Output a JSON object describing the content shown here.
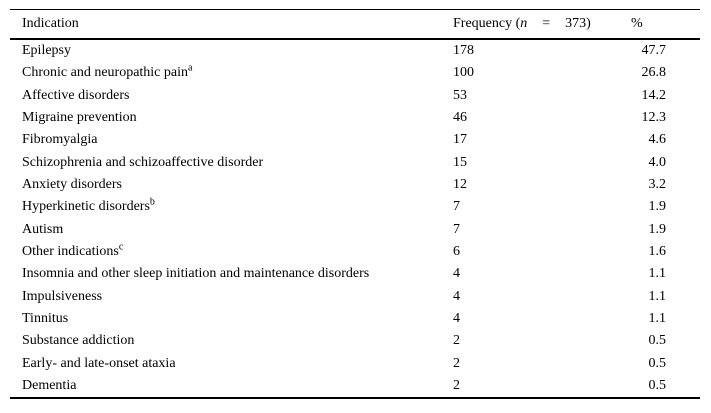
{
  "table": {
    "header": {
      "indication": "Indication",
      "frequency_prefix": "Frequency (",
      "frequency_n": "n",
      "frequency_eq": "=",
      "frequency_suffix": "373)",
      "percent": "%"
    },
    "rows": [
      {
        "indication": "Epilepsy",
        "frequency": "178",
        "percent": "47.7"
      },
      {
        "indication": "Chronic and neuropathic pain",
        "sup": "a",
        "frequency": "100",
        "percent": "26.8"
      },
      {
        "indication": "Affective disorders",
        "frequency": "53",
        "percent": "14.2"
      },
      {
        "indication": "Migraine prevention",
        "frequency": "46",
        "percent": "12.3"
      },
      {
        "indication": "Fibromyalgia",
        "frequency": "17",
        "percent": "4.6"
      },
      {
        "indication": "Schizophrenia and schizoaffective disorder",
        "frequency": "15",
        "percent": "4.0"
      },
      {
        "indication": "Anxiety disorders",
        "frequency": "12",
        "percent": "3.2"
      },
      {
        "indication": "Hyperkinetic disorders",
        "sup": "b",
        "frequency": "7",
        "percent": "1.9"
      },
      {
        "indication": "Autism",
        "frequency": "7",
        "percent": "1.9"
      },
      {
        "indication": "Other indications",
        "sup": "c",
        "frequency": "6",
        "percent": "1.6"
      },
      {
        "indication": "Insomnia and other sleep initiation and maintenance disorders",
        "frequency": "4",
        "percent": "1.1"
      },
      {
        "indication": "Impulsiveness",
        "frequency": "4",
        "percent": "1.1"
      },
      {
        "indication": "Tinnitus",
        "frequency": "4",
        "percent": "1.1"
      },
      {
        "indication": "Substance addiction",
        "frequency": "2",
        "percent": "0.5"
      },
      {
        "indication": "Early- and late-onset ataxia",
        "frequency": "2",
        "percent": "0.5"
      },
      {
        "indication": "Dementia",
        "frequency": "2",
        "percent": "0.5"
      }
    ]
  },
  "colors": {
    "text": "#000000",
    "rule": "#000000",
    "background": "#ffffff"
  }
}
